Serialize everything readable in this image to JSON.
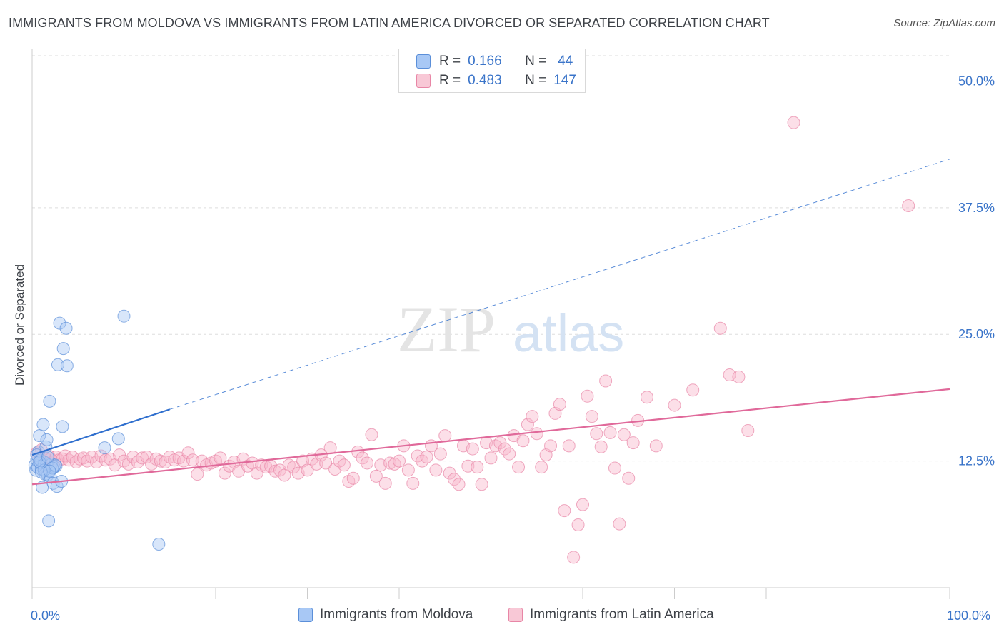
{
  "title": "IMMIGRANTS FROM MOLDOVA VS IMMIGRANTS FROM LATIN AMERICA DIVORCED OR SEPARATED CORRELATION CHART",
  "source": "Source: ZipAtlas.com",
  "watermark": {
    "zip": "ZIP",
    "atlas": "atlas"
  },
  "colors": {
    "moldova_fill": "#a8c8f5",
    "moldova_stroke": "#5b8fd9",
    "moldova_line": "#2f6fce",
    "latam_fill": "#f8b8cc",
    "latam_stroke": "#e886a6",
    "latam_line": "#e0699a",
    "axis_label": "#3a74c9",
    "grid": "#dddddd"
  },
  "legend": {
    "rows": [
      {
        "r_label": "R =",
        "r_value": "0.166",
        "n_label": "N =",
        "n_value": "44"
      },
      {
        "r_label": "R =",
        "r_value": "0.483",
        "n_label": "N =",
        "n_value": "147"
      }
    ]
  },
  "bottom_legend": [
    "Immigrants from Moldova",
    "Immigrants from Latin America"
  ],
  "chart_data": {
    "type": "scatter",
    "title": "IMMIGRANTS FROM MOLDOVA VS IMMIGRANTS FROM LATIN AMERICA DIVORCED OR SEPARATED CORRELATION CHART",
    "xlabel": "",
    "ylabel": "Divorced or Separated",
    "xlim": [
      0,
      100
    ],
    "ylim": [
      0,
      52.5
    ],
    "x_tick_labels": [
      "0.0%",
      "100.0%"
    ],
    "y_ticks": [
      12.5,
      25.0,
      37.5,
      50.0
    ],
    "y_tick_labels": [
      "12.5%",
      "25.0%",
      "37.5%",
      "50.0%"
    ],
    "grid": true,
    "legend_position": "top-center",
    "series": [
      {
        "name": "Immigrants from Moldova",
        "points": [
          [
            0.3,
            12.1
          ],
          [
            0.4,
            11.6
          ],
          [
            0.5,
            12.6
          ],
          [
            0.6,
            11.9
          ],
          [
            0.7,
            13.4
          ],
          [
            0.8,
            15.0
          ],
          [
            0.9,
            12.3
          ],
          [
            1.0,
            11.7
          ],
          [
            1.1,
            9.9
          ],
          [
            1.2,
            16.1
          ],
          [
            1.3,
            12.4
          ],
          [
            1.4,
            11.2
          ],
          [
            1.5,
            13.9
          ],
          [
            1.6,
            14.6
          ],
          [
            1.7,
            11.1
          ],
          [
            1.8,
            6.6
          ],
          [
            1.9,
            18.4
          ],
          [
            2.0,
            10.9
          ],
          [
            2.1,
            12.2
          ],
          [
            2.3,
            10.3
          ],
          [
            2.4,
            11.9
          ],
          [
            2.6,
            12.0
          ],
          [
            2.7,
            10.0
          ],
          [
            2.8,
            22.0
          ],
          [
            3.0,
            26.1
          ],
          [
            3.2,
            10.5
          ],
          [
            3.3,
            15.9
          ],
          [
            3.4,
            23.6
          ],
          [
            3.7,
            25.6
          ],
          [
            3.8,
            21.9
          ],
          [
            7.9,
            13.8
          ],
          [
            9.4,
            14.7
          ],
          [
            10.0,
            26.8
          ],
          [
            13.8,
            4.3
          ],
          [
            0.9,
            12.6
          ],
          [
            1.6,
            12.2
          ],
          [
            2.2,
            11.8
          ],
          [
            0.5,
            13.1
          ],
          [
            1.3,
            11.6
          ],
          [
            2.5,
            12.1
          ],
          [
            0.8,
            12.4
          ],
          [
            1.0,
            11.4
          ],
          [
            1.7,
            12.9
          ],
          [
            1.9,
            11.5
          ]
        ],
        "trend": {
          "x0": 0,
          "y0": 13.1,
          "x1": 15,
          "y1": 17.6,
          "dashed_to_x": 100,
          "dashed_to_y": 42.3
        }
      },
      {
        "name": "Immigrants from Latin America",
        "points": [
          [
            0.5,
            13.3
          ],
          [
            0.8,
            12.5
          ],
          [
            1.0,
            13.6
          ],
          [
            1.2,
            12.0
          ],
          [
            1.4,
            12.8
          ],
          [
            1.6,
            12.3
          ],
          [
            1.8,
            13.0
          ],
          [
            2.0,
            12.7
          ],
          [
            2.3,
            12.4
          ],
          [
            2.6,
            12.9
          ],
          [
            2.9,
            12.6
          ],
          [
            3.3,
            12.7
          ],
          [
            3.6,
            13.0
          ],
          [
            4.0,
            12.6
          ],
          [
            4.4,
            12.9
          ],
          [
            4.8,
            12.4
          ],
          [
            5.2,
            12.7
          ],
          [
            5.6,
            12.8
          ],
          [
            6.0,
            12.5
          ],
          [
            6.5,
            12.9
          ],
          [
            7.0,
            12.4
          ],
          [
            7.5,
            13.0
          ],
          [
            8.0,
            12.6
          ],
          [
            8.5,
            12.7
          ],
          [
            9.0,
            12.1
          ],
          [
            9.5,
            13.1
          ],
          [
            10.0,
            12.5
          ],
          [
            10.5,
            12.2
          ],
          [
            11.0,
            12.9
          ],
          [
            11.5,
            12.4
          ],
          [
            12.0,
            12.8
          ],
          [
            12.5,
            12.9
          ],
          [
            13.0,
            12.2
          ],
          [
            13.5,
            12.7
          ],
          [
            14.0,
            12.5
          ],
          [
            14.5,
            12.4
          ],
          [
            15.0,
            12.9
          ],
          [
            15.5,
            12.6
          ],
          [
            16.0,
            12.8
          ],
          [
            16.5,
            12.5
          ],
          [
            17.0,
            13.3
          ],
          [
            17.5,
            12.6
          ],
          [
            18.0,
            11.2
          ],
          [
            18.5,
            12.5
          ],
          [
            19.0,
            12.1
          ],
          [
            19.5,
            12.3
          ],
          [
            20.0,
            12.5
          ],
          [
            20.5,
            12.8
          ],
          [
            21.0,
            11.3
          ],
          [
            21.5,
            12.0
          ],
          [
            22.0,
            12.4
          ],
          [
            22.5,
            11.5
          ],
          [
            23.0,
            12.7
          ],
          [
            23.5,
            12.0
          ],
          [
            24.0,
            12.3
          ],
          [
            24.5,
            11.3
          ],
          [
            25.0,
            12.1
          ],
          [
            25.5,
            11.9
          ],
          [
            26.0,
            12.0
          ],
          [
            26.5,
            11.5
          ],
          [
            27.0,
            11.6
          ],
          [
            27.5,
            11.1
          ],
          [
            28.0,
            12.1
          ],
          [
            28.5,
            11.9
          ],
          [
            29.0,
            11.3
          ],
          [
            29.5,
            12.5
          ],
          [
            30.0,
            11.6
          ],
          [
            30.5,
            12.7
          ],
          [
            31.0,
            12.2
          ],
          [
            31.5,
            13.1
          ],
          [
            32.0,
            12.3
          ],
          [
            32.5,
            13.8
          ],
          [
            33.0,
            11.7
          ],
          [
            33.5,
            12.5
          ],
          [
            34.0,
            12.1
          ],
          [
            34.5,
            10.5
          ],
          [
            35.0,
            10.8
          ],
          [
            35.5,
            13.4
          ],
          [
            36.0,
            12.8
          ],
          [
            36.5,
            12.3
          ],
          [
            37.0,
            15.1
          ],
          [
            37.5,
            11.0
          ],
          [
            38.0,
            12.1
          ],
          [
            38.5,
            10.3
          ],
          [
            39.0,
            12.3
          ],
          [
            39.5,
            12.2
          ],
          [
            40.0,
            12.5
          ],
          [
            40.5,
            14.0
          ],
          [
            41.0,
            11.6
          ],
          [
            41.5,
            10.3
          ],
          [
            42.0,
            13.0
          ],
          [
            42.5,
            12.5
          ],
          [
            43.0,
            12.9
          ],
          [
            43.5,
            14.0
          ],
          [
            44.0,
            11.6
          ],
          [
            44.5,
            13.2
          ],
          [
            45.0,
            15.0
          ],
          [
            45.5,
            11.3
          ],
          [
            46.0,
            10.7
          ],
          [
            46.5,
            10.2
          ],
          [
            47.0,
            14.0
          ],
          [
            47.5,
            12.0
          ],
          [
            48.0,
            13.7
          ],
          [
            48.5,
            11.9
          ],
          [
            49.0,
            10.2
          ],
          [
            49.5,
            14.3
          ],
          [
            50.0,
            12.8
          ],
          [
            50.5,
            14.0
          ],
          [
            51.0,
            14.3
          ],
          [
            51.5,
            13.7
          ],
          [
            52.0,
            13.2
          ],
          [
            52.5,
            15.0
          ],
          [
            53.0,
            11.9
          ],
          [
            53.5,
            14.5
          ],
          [
            54.0,
            16.1
          ],
          [
            54.5,
            16.9
          ],
          [
            55.0,
            15.2
          ],
          [
            55.5,
            11.9
          ],
          [
            56.0,
            13.1
          ],
          [
            56.5,
            14.0
          ],
          [
            57.0,
            17.2
          ],
          [
            57.5,
            18.1
          ],
          [
            58.0,
            7.6
          ],
          [
            58.5,
            14.0
          ],
          [
            59.0,
            3.0
          ],
          [
            59.5,
            6.2
          ],
          [
            60.0,
            8.2
          ],
          [
            60.5,
            18.9
          ],
          [
            61.0,
            16.9
          ],
          [
            61.5,
            15.2
          ],
          [
            62.0,
            13.9
          ],
          [
            62.5,
            20.4
          ],
          [
            63.0,
            15.3
          ],
          [
            63.5,
            11.8
          ],
          [
            64.0,
            6.3
          ],
          [
            64.5,
            15.1
          ],
          [
            65.0,
            10.8
          ],
          [
            65.5,
            14.3
          ],
          [
            66.0,
            16.5
          ],
          [
            67.0,
            18.8
          ],
          [
            68.0,
            14.0
          ],
          [
            70.0,
            18.0
          ],
          [
            72.0,
            19.5
          ],
          [
            75.0,
            25.6
          ],
          [
            76.0,
            21.0
          ],
          [
            78.0,
            15.5
          ],
          [
            83.0,
            45.9
          ],
          [
            95.5,
            37.7
          ],
          [
            77.0,
            20.8
          ]
        ],
        "trend": {
          "x0": 0,
          "y0": 10.2,
          "x1": 100,
          "y1": 19.6
        }
      }
    ]
  }
}
